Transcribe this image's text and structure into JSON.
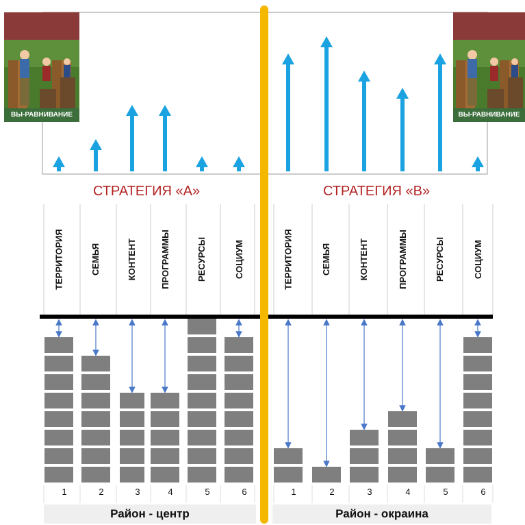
{
  "strategy_a": {
    "title": "СТРАТЕГИЯ «А»"
  },
  "strategy_b": {
    "title": "СТРАТЕГИЯ «В»"
  },
  "illustration_label": "ВЫ-РАВНИВАНИЕ",
  "categories": [
    "ТЕРРИТОРИЯ",
    "СЕМЬЯ",
    "КОНТЕНТ",
    "ПРОГРАММЫ",
    "РЕСУРСЫ",
    "СОЦИУМ"
  ],
  "column_numbers": [
    "1",
    "2",
    "3",
    "4",
    "5",
    "6"
  ],
  "districts": {
    "center": "Район - центр",
    "outskirts": "Район - окраина"
  },
  "colors": {
    "divider": "#f5b800",
    "arrow": "#1aa3e0",
    "block": "#7f7f7f",
    "strategy_text": "#b22222",
    "gap_arrow": "#4a78c8"
  },
  "chart_data": [
    {
      "type": "bar",
      "title": "СТРАТЕГИЯ «А»",
      "xlabel": "Район - центр",
      "categories": [
        "1",
        "2",
        "3",
        "4",
        "5",
        "6"
      ],
      "values": [
        8,
        7,
        5,
        5,
        9,
        8
      ],
      "ylim": [
        0,
        9
      ],
      "support_arrows": [
        1,
        2,
        4,
        4,
        0,
        1
      ]
    },
    {
      "type": "bar",
      "title": "СТРАТЕГИЯ «В»",
      "xlabel": "Район - окраина",
      "categories": [
        "1",
        "2",
        "3",
        "4",
        "5",
        "6"
      ],
      "values": [
        2,
        1,
        3,
        4,
        2,
        8
      ],
      "ylim": [
        0,
        9
      ],
      "support_arrows": [
        7,
        8,
        6,
        5,
        7,
        1
      ]
    }
  ]
}
